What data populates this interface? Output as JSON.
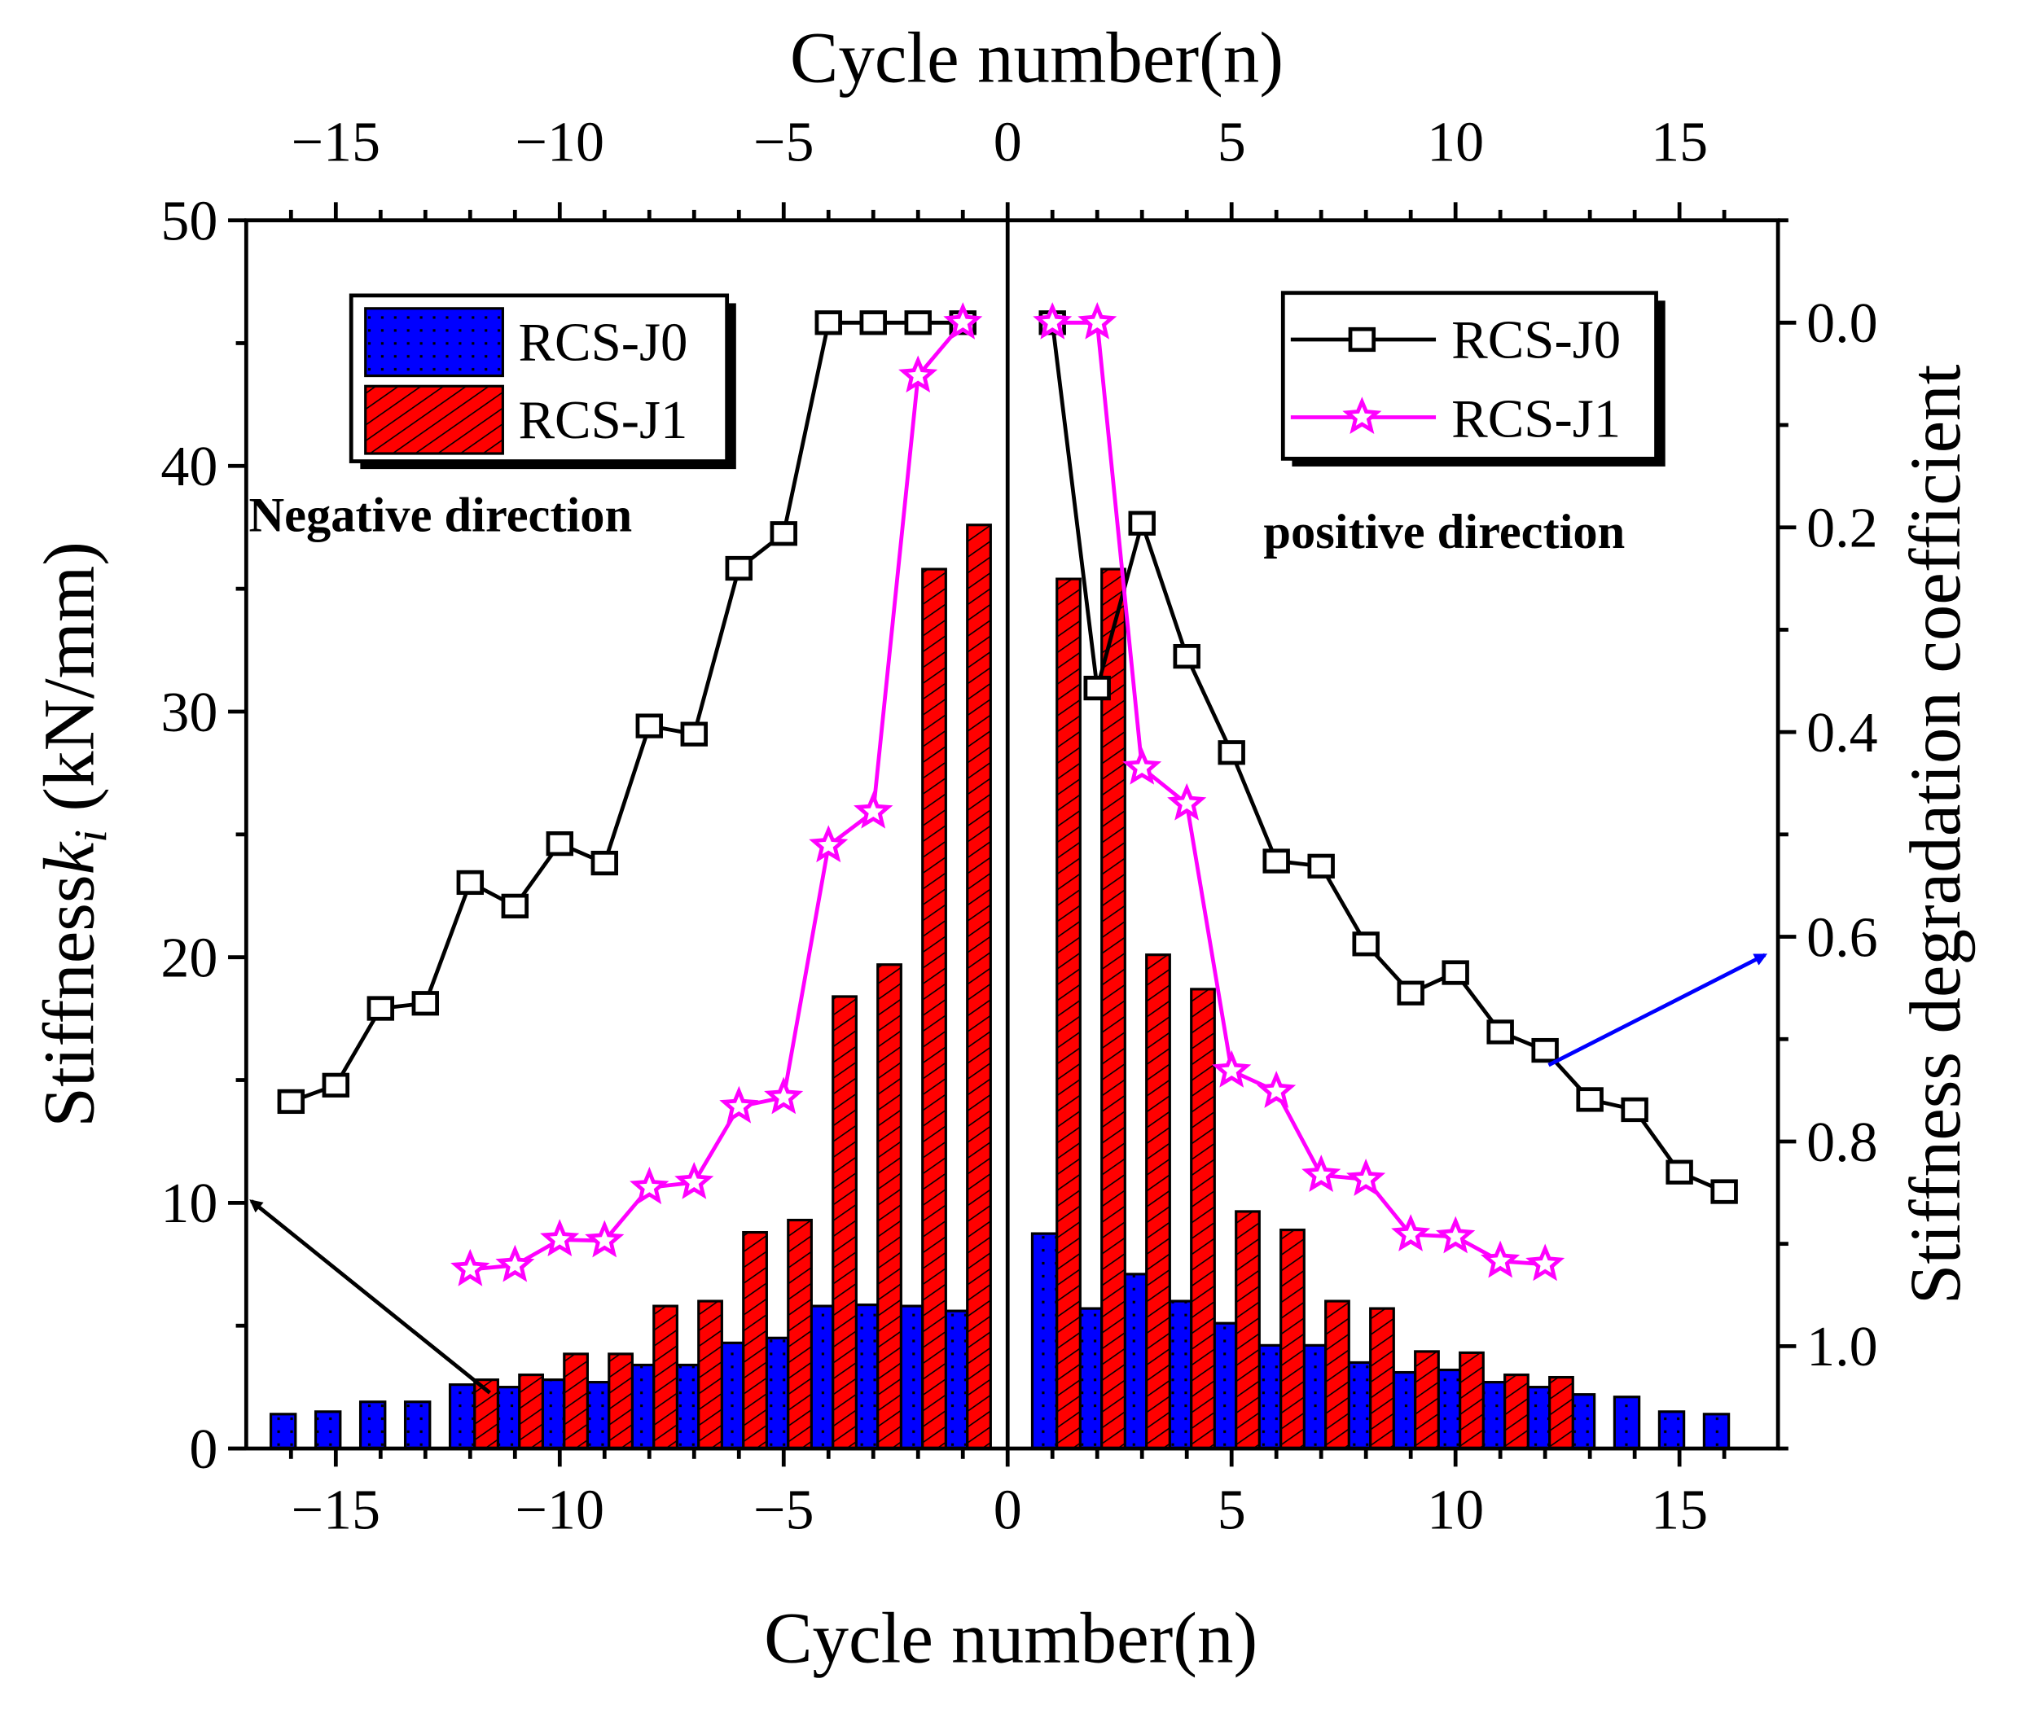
{
  "chart_data": {
    "type": "bar+line",
    "x_label_bottom": "Cycle number(n)",
    "x_label_top": "Cycle number(n)",
    "y_label_left_prefix": "Stiffness",
    "y_label_left_var": "k",
    "y_label_left_sub": "i",
    "y_label_left_unit": " (kN/mm)",
    "y_label_right": "Stiffness degradation coefficient",
    "xlim": [
      -17,
      17.2
    ],
    "ylim_left": [
      0,
      50
    ],
    "ylim_right": [
      1.1,
      -0.1
    ],
    "x_ticks": [
      -15,
      -10,
      -5,
      0,
      5,
      10,
      15
    ],
    "y_ticks_left": [
      0,
      10,
      20,
      30,
      40,
      50
    ],
    "y_ticks_right": [
      "0.0",
      "0.2",
      "0.4",
      "0.6",
      "0.8",
      "1.0"
    ],
    "annotations": {
      "negative": "Negative direction",
      "positive": "positive direction"
    },
    "bar_legend": [
      "RCS-J0",
      "RCS-J1"
    ],
    "line_legend": [
      "RCS-J0",
      "RCS-J1"
    ],
    "colors": {
      "J0_bar": "#0000ff",
      "J1_bar": "#ff0000",
      "J0_line": "#000000",
      "J1_line": "#ff00ff",
      "arrow_left": "#000000",
      "arrow_right": "#0000ff"
    },
    "bars": [
      {
        "name": "RCS-J0",
        "x": [
          -16,
          -15,
          -14,
          -13,
          -12,
          -11,
          -10,
          -9,
          -8,
          -7,
          -6,
          -5,
          -4,
          -3,
          -2,
          -1,
          1,
          2,
          3,
          4,
          5,
          6,
          7,
          8,
          9,
          10,
          11,
          12,
          13,
          14,
          15,
          16
        ],
        "values": [
          1.4,
          1.5,
          1.9,
          1.9,
          2.6,
          2.5,
          2.8,
          2.7,
          3.4,
          3.4,
          4.3,
          4.5,
          5.8,
          5.85,
          5.8,
          5.6,
          8.75,
          5.7,
          7.1,
          6.0,
          5.1,
          4.2,
          4.2,
          3.5,
          3.1,
          3.2,
          2.7,
          2.5,
          2.2,
          2.1,
          1.5,
          1.4
        ]
      },
      {
        "name": "RCS-J1",
        "x": [
          -12,
          -11,
          -10,
          -9,
          -8,
          -7,
          -6,
          -5,
          -4,
          -3,
          -2,
          -1,
          1,
          2,
          3,
          4,
          5,
          6,
          7,
          8,
          9,
          10,
          11,
          12
        ],
        "values": [
          2.8,
          3.0,
          3.85,
          3.85,
          5.8,
          6.0,
          8.8,
          9.3,
          18.4,
          19.7,
          35.8,
          37.6,
          35.4,
          35.8,
          20.1,
          18.7,
          9.65,
          8.9,
          6.0,
          5.7,
          3.95,
          3.9,
          3.0,
          2.9
        ]
      }
    ],
    "lines": [
      {
        "name": "RCS-J0",
        "segments": [
          {
            "x": [
              -16,
              -15,
              -14,
              -13,
              -12,
              -11,
              -10,
              -9,
              -8,
              -7,
              -6,
              -5,
              -4,
              -3,
              -2,
              -1
            ],
            "y": [
              0.761,
              0.745,
              0.67,
              0.665,
              0.547,
              0.57,
              0.509,
              0.528,
              0.394,
              0.402,
              0.24,
              0.206,
              0,
              0,
              0,
              0
            ]
          },
          {
            "x": [
              1,
              2,
              3,
              4,
              5,
              6,
              7,
              8,
              9,
              10,
              11,
              12,
              13,
              14,
              15,
              16
            ],
            "y": [
              0,
              0.357,
              0.196,
              0.326,
              0.42,
              0.526,
              0.531,
              0.607,
              0.655,
              0.635,
              0.693,
              0.711,
              0.759,
              0.769,
              0.83,
              0.849
            ]
          }
        ]
      },
      {
        "name": "RCS-J1",
        "segments": [
          {
            "x": [
              -12,
              -11,
              -10,
              -9,
              -8,
              -7,
              -6,
              -5,
              -4,
              -3,
              -2,
              -1
            ],
            "y": [
              0.925,
              0.921,
              0.896,
              0.897,
              0.845,
              0.84,
              0.766,
              0.757,
              0.511,
              0.478,
              0.052,
              0
            ]
          },
          {
            "x": [
              1,
              2,
              3,
              4,
              5,
              6,
              7,
              8,
              9,
              10,
              11,
              12
            ],
            "y": [
              0,
              0,
              0.435,
              0.47,
              0.731,
              0.751,
              0.833,
              0.837,
              0.891,
              0.893,
              0.917,
              0.92
            ]
          }
        ]
      }
    ]
  }
}
